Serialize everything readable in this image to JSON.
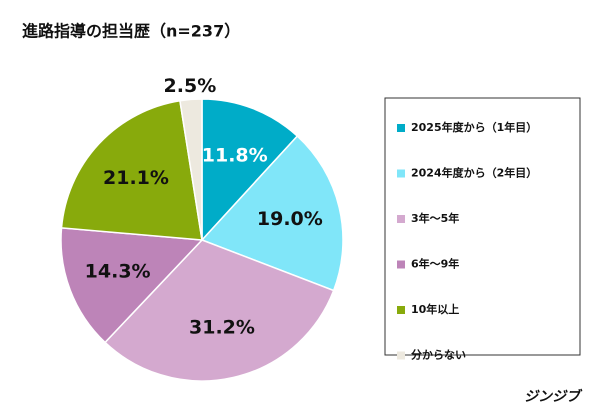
{
  "chart_data": {
    "type": "pie",
    "title": "進路指導の担当歴（n=237）",
    "categories": [
      "2025年度から（1年目）",
      "2024年度から（2年目）",
      "3年〜5年",
      "6年〜9年",
      "10年以上",
      "分からない"
    ],
    "values": [
      11.8,
      19.0,
      31.2,
      14.3,
      21.1,
      2.5
    ],
    "value_labels": [
      "11.8%",
      "19.0%",
      "31.2%",
      "14.3%",
      "21.1%",
      "2.5%"
    ],
    "colors": [
      "#00acc8",
      "#80e6f9",
      "#d4a9cf",
      "#bd84b8",
      "#88aa0c",
      "#ede9df"
    ],
    "legend": "right",
    "source": "ジンジブ"
  }
}
